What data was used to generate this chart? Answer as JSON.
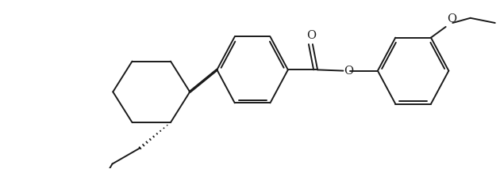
{
  "background": "#ffffff",
  "line_color": "#1a1a1a",
  "line_width": 1.4,
  "figsize": [
    6.3,
    2.14
  ],
  "dpi": 100,
  "xlim": [
    0,
    10
  ],
  "ylim": [
    0,
    3.4
  ]
}
